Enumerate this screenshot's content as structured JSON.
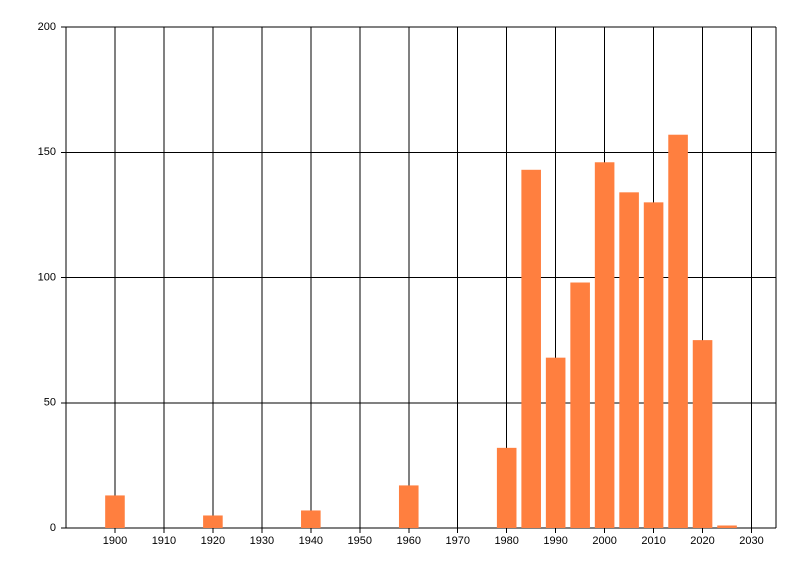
{
  "chart_data": {
    "type": "bar",
    "x": [
      1900,
      1920,
      1940,
      1960,
      1980,
      1985,
      1990,
      1995,
      2000,
      2005,
      2010,
      2015,
      2020,
      2025
    ],
    "values": [
      13,
      5,
      7,
      17,
      32,
      143,
      68,
      98,
      146,
      134,
      130,
      157,
      75,
      1
    ],
    "color": "#ff7f3f",
    "xlim": [
      1890,
      2035
    ],
    "xticks": [
      1900,
      1910,
      1920,
      1930,
      1940,
      1950,
      1960,
      1970,
      1980,
      1990,
      2000,
      2010,
      2020,
      2030
    ],
    "ylim": [
      0,
      200
    ],
    "yticks": [
      0,
      50,
      100,
      150,
      200
    ],
    "grid": true
  }
}
